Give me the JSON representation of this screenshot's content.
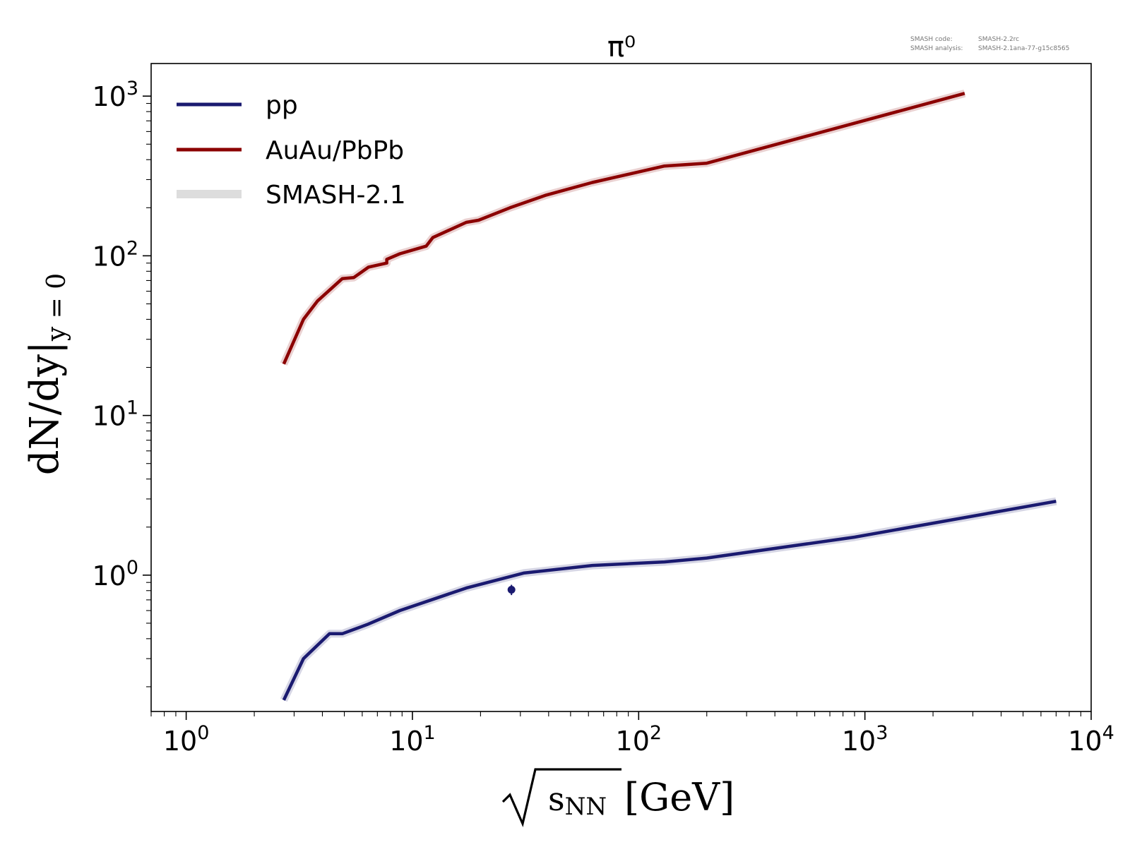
{
  "chart_data": {
    "type": "line",
    "title": "π⁰",
    "xlabel": "[GeV]",
    "xlabel_radicand": "s",
    "xlabel_radicand_sub": "NN",
    "ylabel_main": "dN/dy|",
    "ylabel_sub": "y = 0",
    "xscale": "log",
    "yscale": "log",
    "xlim": [
      0.7,
      10000
    ],
    "ylim": [
      0.14,
      1600
    ],
    "x_ticks": [
      {
        "value": 1,
        "base": "10",
        "exp": "0"
      },
      {
        "value": 10,
        "base": "10",
        "exp": "1"
      },
      {
        "value": 100,
        "base": "10",
        "exp": "2"
      },
      {
        "value": 1000,
        "base": "10",
        "exp": "3"
      },
      {
        "value": 10000,
        "base": "10",
        "exp": "4"
      }
    ],
    "y_ticks": [
      {
        "value": 1,
        "base": "10",
        "exp": "0"
      },
      {
        "value": 10,
        "base": "10",
        "exp": "1"
      },
      {
        "value": 100,
        "base": "10",
        "exp": "2"
      },
      {
        "value": 1000,
        "base": "10",
        "exp": "3"
      }
    ],
    "legend_position": "top-left",
    "legend": [
      {
        "label": "pp",
        "color": "#1a1a70",
        "style": "line"
      },
      {
        "label": "AuAu/PbPb",
        "color": "#8b0000",
        "style": "line"
      },
      {
        "label": "SMASH-2.1",
        "color": "#dddddd",
        "style": "band"
      }
    ],
    "series": [
      {
        "name": "AuAu/PbPb",
        "color": "#8b0000",
        "x": [
          2.7,
          3.3,
          3.8,
          4.9,
          5.5,
          6.4,
          7.7,
          7.7,
          8.8,
          11.5,
          12.3,
          17.3,
          19.6,
          27,
          39,
          62.4,
          130,
          200,
          2760
        ],
        "y": [
          21,
          40,
          52,
          72,
          73,
          85,
          90,
          95,
          103,
          115,
          130,
          162,
          167,
          200,
          240,
          288,
          365,
          380,
          1040
        ]
      },
      {
        "name": "pp",
        "color": "#1a1a70",
        "x": [
          2.7,
          3.3,
          4.3,
          4.9,
          6.3,
          8.8,
          17.3,
          31,
          62.4,
          130,
          200,
          900,
          7000
        ],
        "y": [
          0.165,
          0.3,
          0.43,
          0.43,
          0.49,
          0.6,
          0.83,
          1.03,
          1.15,
          1.21,
          1.28,
          1.73,
          2.9
        ]
      }
    ],
    "data_points": [
      {
        "series": "pp",
        "x": 27.4,
        "y": 0.81,
        "yerr": 0.06,
        "color": "#1a1a70"
      }
    ]
  },
  "annotations": {
    "code_label": "SMASH code:",
    "code_value": "SMASH-2.2rc",
    "analysis_label": "SMASH analysis:",
    "analysis_value": "SMASH-2.1ana-77-g15c8565"
  }
}
